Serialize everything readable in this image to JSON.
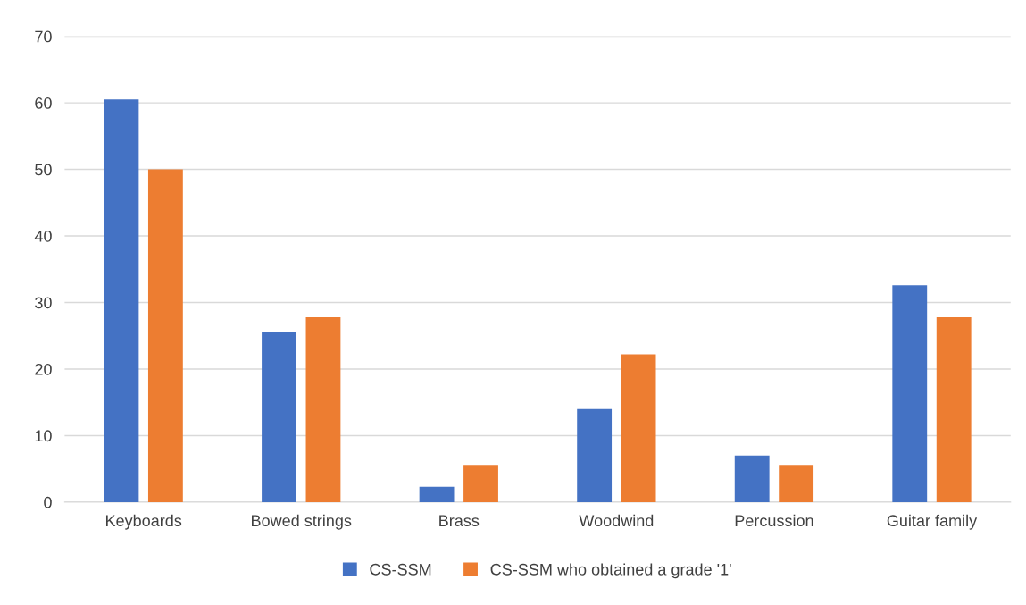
{
  "chart_data": {
    "type": "bar",
    "categories": [
      "Keyboards",
      "Bowed strings",
      "Brass",
      "Woodwind",
      "Percussion",
      "Guitar family"
    ],
    "series": [
      {
        "name": "CS-SSM",
        "color": "#4472c4",
        "values": [
          60.5,
          25.6,
          2.3,
          14.0,
          7.0,
          32.6
        ]
      },
      {
        "name": "CS-SSM who obtained a grade '1'",
        "color": "#ed7d31",
        "values": [
          50.0,
          27.8,
          5.6,
          22.2,
          5.6,
          27.8
        ]
      }
    ],
    "ylim": [
      0,
      70
    ],
    "yticks": [
      0,
      10,
      20,
      30,
      40,
      50,
      60,
      70
    ],
    "grid": "y",
    "legend": "bottom"
  }
}
